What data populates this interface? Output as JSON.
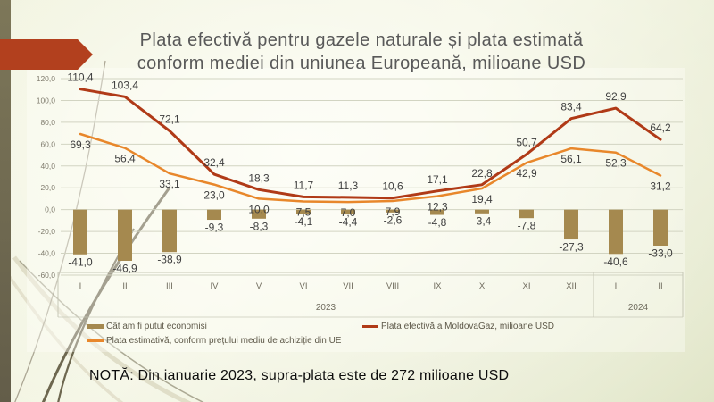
{
  "slide_title": {
    "line1": "Plata efectivă pentru gazele naturale și plata estimată",
    "line2": "conform mediei din uniunea Europeană, milioane USD"
  },
  "note": "NOTĂ: Din ianuarie 2023, supra-plata este de 272 milioane USD",
  "theme": {
    "arrow_red": "#b2401e",
    "edge_olive": "#746e58",
    "title_gray": "#595959",
    "gridline": "#d2d4c2",
    "axis_line": "#c7c8b7",
    "tick_text": "#7f7b6d",
    "category_text": "#6f6b5d",
    "data_label_text": "#3f3f3f"
  },
  "chart_data": {
    "type": "combo",
    "title": "Plata efectivă pentru gazele naturale și plata estimată conform mediei din uniunea Europeană, milioane USD",
    "categories": [
      "I",
      "II",
      "III",
      "IV",
      "V",
      "VI",
      "VII",
      "VIII",
      "IX",
      "X",
      "XI",
      "XII",
      "I",
      "II"
    ],
    "year_groups": [
      {
        "label": "2023",
        "span": 12
      },
      {
        "label": "2024",
        "span": 2
      }
    ],
    "y_axis": {
      "min": -60,
      "max": 120,
      "step": 20
    },
    "grid": true,
    "legend_position": "bottom",
    "decimal_separator": ",",
    "series": [
      {
        "name": "Cât am fi putut economisi",
        "type": "bar",
        "color": "#a5894f",
        "label_position": "below",
        "values": [
          -41.0,
          -46.9,
          -38.9,
          -9.3,
          -8.3,
          -4.1,
          -4.4,
          -2.6,
          -4.8,
          -3.4,
          -7.8,
          -27.3,
          -40.6,
          -33.0
        ]
      },
      {
        "name": "Plata efectivă a MoldovaGaz, milioane USD",
        "type": "line",
        "color": "#b03a17",
        "label_position": "above",
        "values": [
          110.4,
          103.4,
          72.1,
          32.4,
          18.3,
          11.7,
          11.3,
          10.6,
          17.1,
          22.8,
          50.7,
          83.4,
          92.9,
          64.2
        ]
      },
      {
        "name": "Plata estimativă, conform prețului mediu de achiziție din UE",
        "type": "line",
        "color": "#e8872b",
        "label_position": "below",
        "values": [
          69.3,
          56.4,
          33.1,
          23.0,
          10.0,
          7.5,
          7.0,
          7.9,
          12.3,
          19.4,
          42.9,
          56.1,
          52.3,
          31.2
        ]
      }
    ]
  }
}
